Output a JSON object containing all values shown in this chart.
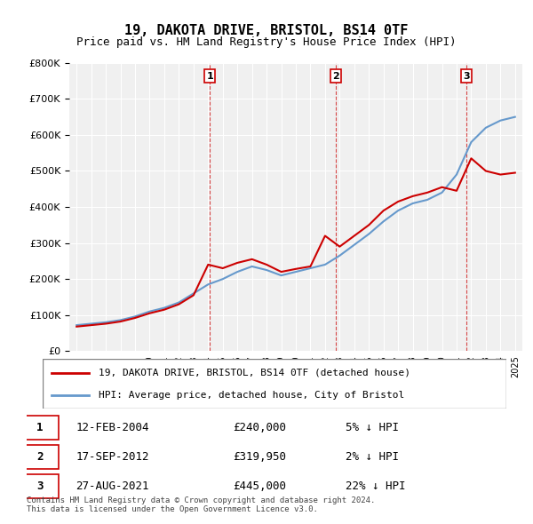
{
  "title": "19, DAKOTA DRIVE, BRISTOL, BS14 0TF",
  "subtitle": "Price paid vs. HM Land Registry's House Price Index (HPI)",
  "legend_line1": "19, DAKOTA DRIVE, BRISTOL, BS14 0TF (detached house)",
  "legend_line2": "HPI: Average price, detached house, City of Bristol",
  "table_rows": [
    {
      "num": "1",
      "date": "12-FEB-2004",
      "price": "£240,000",
      "pct": "5% ↓ HPI"
    },
    {
      "num": "2",
      "date": "17-SEP-2012",
      "price": "£319,950",
      "pct": "2% ↓ HPI"
    },
    {
      "num": "3",
      "date": "27-AUG-2021",
      "price": "£445,000",
      "pct": "22% ↓ HPI"
    }
  ],
  "footer": "Contains HM Land Registry data © Crown copyright and database right 2024.\nThis data is licensed under the Open Government Licence v3.0.",
  "sale_color": "#cc0000",
  "hpi_color": "#6699cc",
  "sale_dates": [
    2004.12,
    2012.72,
    2021.65
  ],
  "sale_prices": [
    240000,
    319950,
    445000
  ],
  "ylim": [
    0,
    800000
  ],
  "yticks": [
    0,
    100000,
    200000,
    300000,
    400000,
    500000,
    600000,
    700000,
    800000
  ],
  "background_color": "#f0f0f0",
  "plot_bg": "#f0f0f0",
  "hpi_years": [
    1995,
    1996,
    1997,
    1998,
    1999,
    2000,
    2001,
    2002,
    2003,
    2004,
    2005,
    2006,
    2007,
    2008,
    2009,
    2010,
    2011,
    2012,
    2013,
    2014,
    2015,
    2016,
    2017,
    2018,
    2019,
    2020,
    2021,
    2022,
    2023,
    2024,
    2025
  ],
  "hpi_values": [
    72000,
    76000,
    80000,
    86000,
    96000,
    110000,
    120000,
    135000,
    160000,
    185000,
    200000,
    220000,
    235000,
    225000,
    210000,
    220000,
    230000,
    240000,
    265000,
    295000,
    325000,
    360000,
    390000,
    410000,
    420000,
    440000,
    490000,
    580000,
    620000,
    640000,
    650000
  ],
  "house_years": [
    1995,
    1996,
    1997,
    1998,
    1999,
    2000,
    2001,
    2002,
    2003,
    2004,
    2005,
    2006,
    2007,
    2008,
    2009,
    2010,
    2011,
    2012,
    2013,
    2014,
    2015,
    2016,
    2017,
    2018,
    2019,
    2020,
    2021,
    2022,
    2023,
    2024,
    2025
  ],
  "house_values": [
    68000,
    72000,
    76000,
    82000,
    92000,
    105000,
    115000,
    130000,
    155000,
    240000,
    230000,
    245000,
    255000,
    240000,
    220000,
    228000,
    235000,
    319950,
    290000,
    320000,
    350000,
    390000,
    415000,
    430000,
    440000,
    455000,
    445000,
    535000,
    500000,
    490000,
    495000
  ],
  "vline_dates": [
    2004.12,
    2012.72,
    2021.65
  ],
  "vline_labels": [
    "1",
    "2",
    "3"
  ]
}
